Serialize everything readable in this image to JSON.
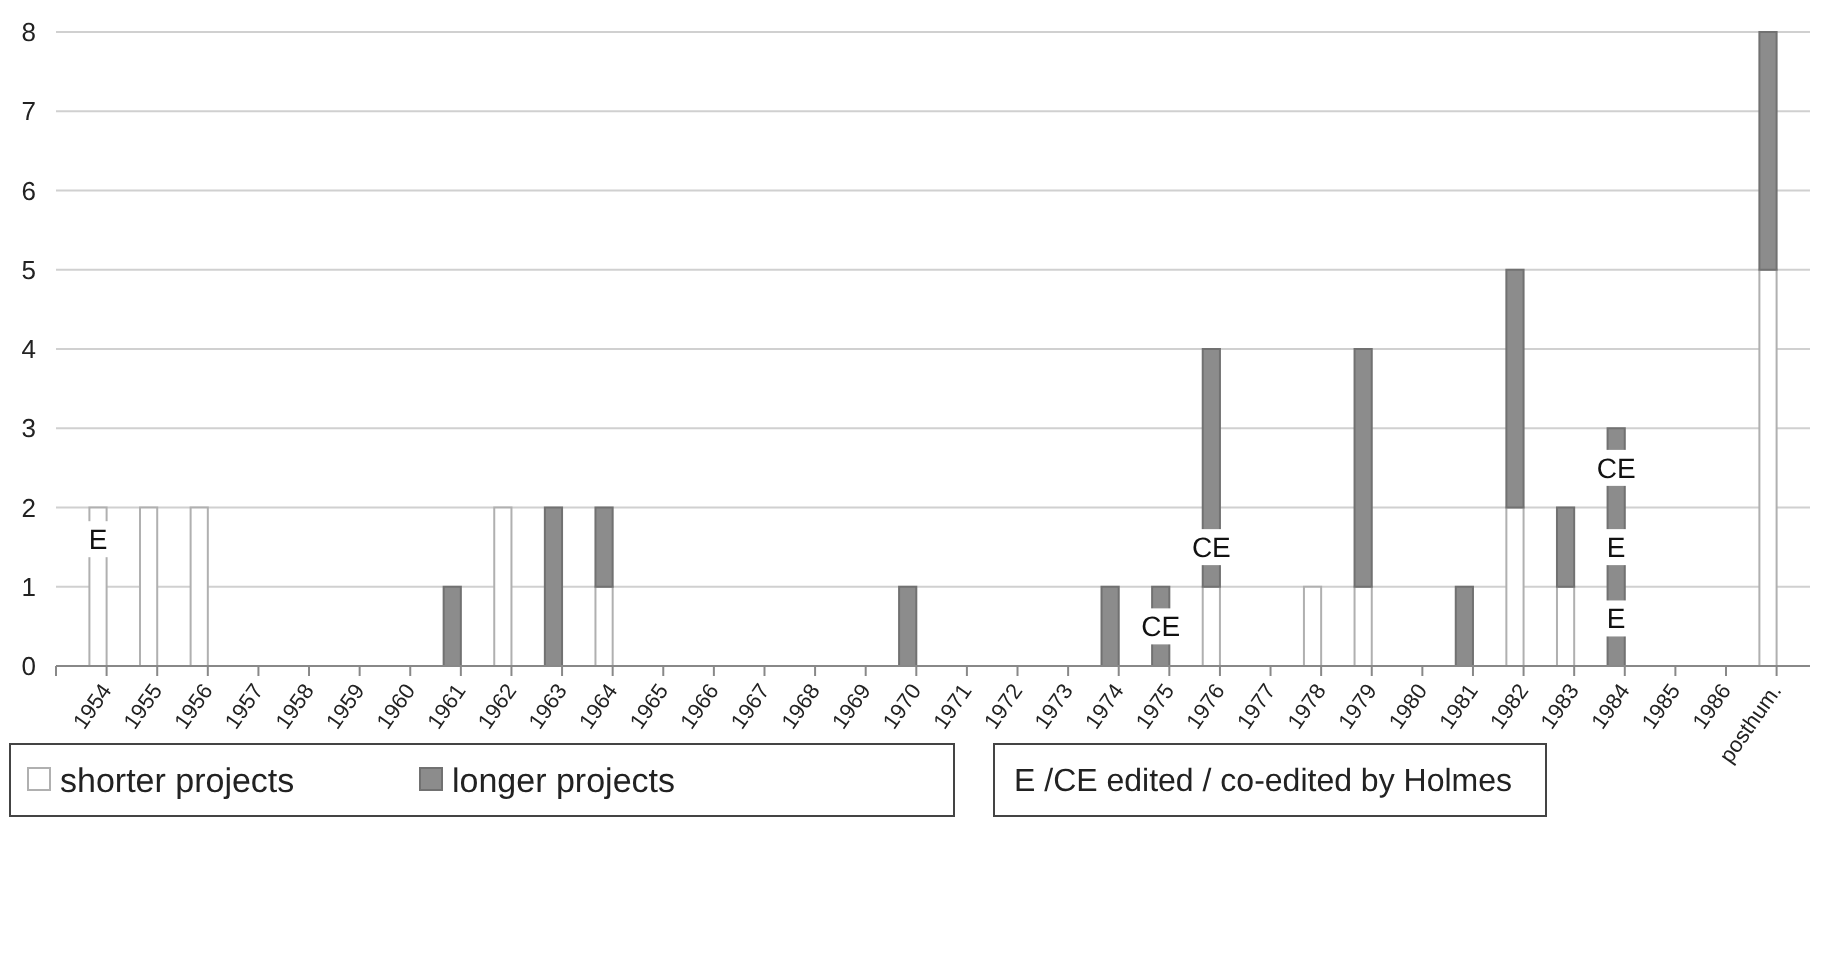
{
  "chart_data": {
    "type": "bar",
    "stacked": true,
    "categories": [
      "1954",
      "1955",
      "1956",
      "1957",
      "1958",
      "1959",
      "1960",
      "1961",
      "1962",
      "1963",
      "1964",
      "1965",
      "1966",
      "1967",
      "1968",
      "1969",
      "1970",
      "1971",
      "1972",
      "1973",
      "1974",
      "1975",
      "1976",
      "1977",
      "1978",
      "1979",
      "1980",
      "1981",
      "1982",
      "1983",
      "1984",
      "1985",
      "1986",
      "posthum."
    ],
    "series": [
      {
        "name": "shorter projects",
        "color": "#ffffff",
        "values": [
          2,
          2,
          2,
          0,
          0,
          0,
          0,
          0,
          2,
          0,
          1,
          0,
          0,
          0,
          0,
          0,
          0,
          0,
          0,
          0,
          0,
          0,
          1,
          0,
          1,
          1,
          0,
          0,
          2,
          1,
          0,
          0,
          0,
          5
        ]
      },
      {
        "name": "longer projects",
        "color": "#8c8c8c",
        "values": [
          0,
          0,
          0,
          0,
          0,
          0,
          0,
          1,
          0,
          2,
          1,
          0,
          0,
          0,
          0,
          0,
          1,
          0,
          0,
          0,
          1,
          1,
          3,
          0,
          0,
          3,
          0,
          1,
          3,
          1,
          3,
          0,
          0,
          3
        ]
      }
    ],
    "ylim": [
      0,
      8
    ],
    "yticks": [
      0,
      1,
      2,
      3,
      4,
      5,
      6,
      7,
      8
    ],
    "grid": "y",
    "legend": "bottom",
    "annotations": [
      {
        "text": "E",
        "x": "1954",
        "y": 1.6
      },
      {
        "text": "CE",
        "x": "1975",
        "y": 0.5
      },
      {
        "text": "CE",
        "x": "1976",
        "y": 1.5
      },
      {
        "text": "E",
        "x": "1984",
        "y": 0.6
      },
      {
        "text": "E",
        "x": "1984",
        "y": 1.5
      },
      {
        "text": "CE",
        "x": "1984",
        "y": 2.5
      },
      "E /CE edited / co-edited by Holmes"
    ]
  }
}
